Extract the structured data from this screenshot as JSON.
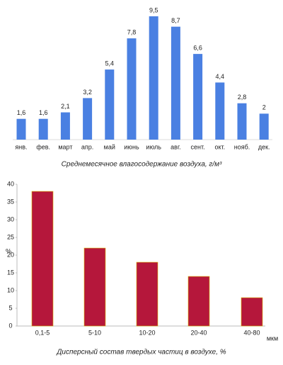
{
  "chart_data": [
    {
      "type": "bar",
      "title": "Среднемесячное влагосодержание воздуха, г/м³",
      "categories": [
        "янв.",
        "фев.",
        "март",
        "апр.",
        "май",
        "июнь",
        "июль",
        "авг.",
        "сент.",
        "окт.",
        "нояб.",
        "дек."
      ],
      "values": [
        1.6,
        1.6,
        2.1,
        3.2,
        5.4,
        7.8,
        9.5,
        8.7,
        6.6,
        4.4,
        2.8,
        2
      ],
      "value_labels": [
        "1,6",
        "1,6",
        "2,1",
        "3,2",
        "5,4",
        "7,8",
        "9,5",
        "8,7",
        "6,6",
        "4,4",
        "2,8",
        "2"
      ],
      "color": "#4a80e2"
    },
    {
      "type": "bar",
      "title": "Дисперсный состав твердых частиц в воздухе, %",
      "categories": [
        "0,1-5",
        "5-10",
        "10-20",
        "20-40",
        "40-80"
      ],
      "values": [
        38,
        22,
        18,
        14,
        8
      ],
      "color": "#b5173b",
      "ylim": [
        0,
        40
      ],
      "yticks": [
        0,
        5,
        10,
        15,
        20,
        25,
        30,
        35,
        40
      ],
      "y_label": "%",
      "x_label": "мкм"
    }
  ]
}
